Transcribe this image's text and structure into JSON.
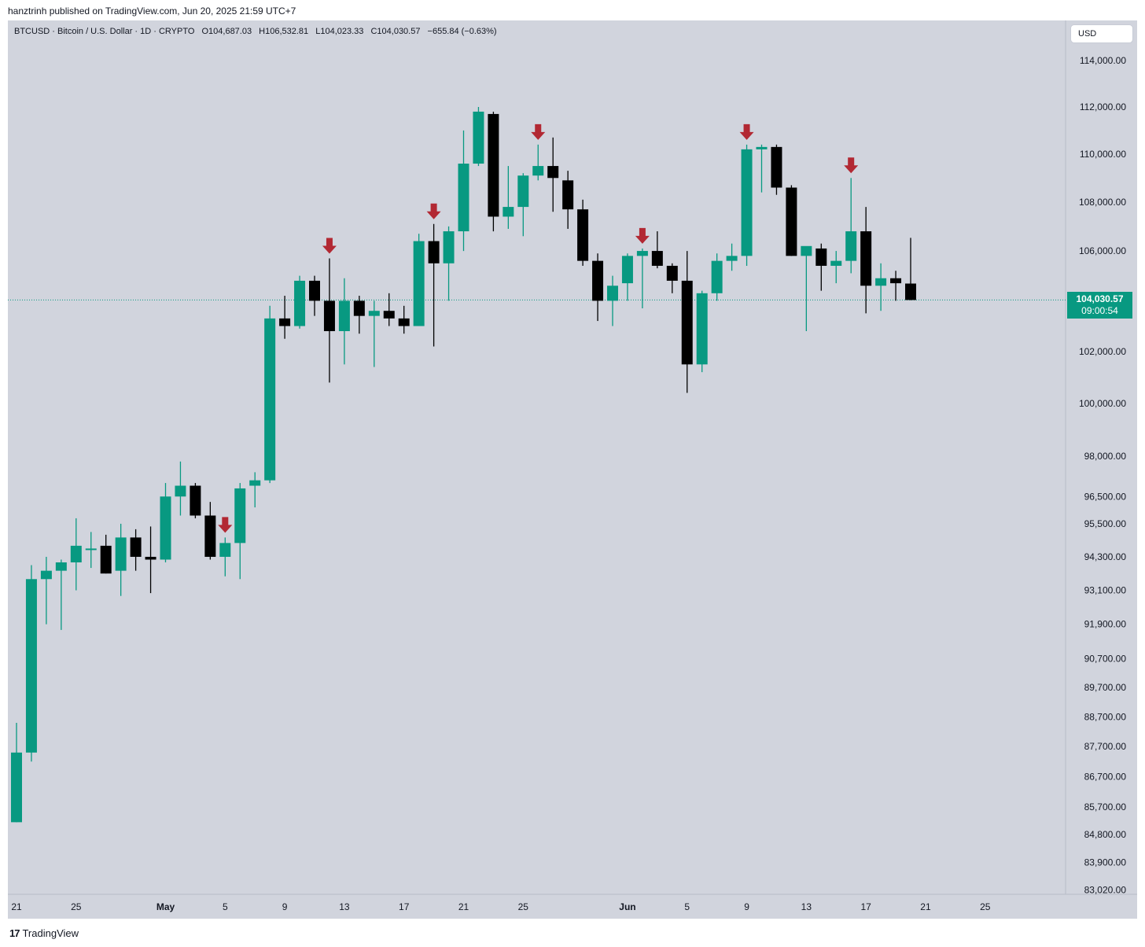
{
  "header": {
    "published": "hanztrinh published on TradingView.com, Jun 20, 2025 21:59 UTC+7"
  },
  "legend": {
    "symbol": "BTCUSD · Bitcoin / U.S. Dollar · 1D · CRYPTO",
    "open": "O104,687.03",
    "high": "H106,532.81",
    "low": "L104,023.33",
    "close": "C104,030.57",
    "change": "−655.84 (−0.63%)"
  },
  "currency_button": "USD",
  "last_price": {
    "price": "104,030.57",
    "countdown": "09:00:54"
  },
  "footer": {
    "brand": "TradingView",
    "logo": "17"
  },
  "colors": {
    "up": "#089981",
    "down": "#000000",
    "arrow": "#b22833",
    "background": "#d1d4dd"
  },
  "chart_data": {
    "type": "candlestick",
    "title": "",
    "y_scale": "log",
    "ylim": [
      82800,
      115500
    ],
    "yticks": [
      {
        "value": 114000,
        "label": "114,000.00"
      },
      {
        "value": 112000,
        "label": "112,000.00"
      },
      {
        "value": 110000,
        "label": "110,000.00"
      },
      {
        "value": 108000,
        "label": "108,000.00"
      },
      {
        "value": 106000,
        "label": "106,000.00"
      },
      {
        "value": 102000,
        "label": "102,000.00"
      },
      {
        "value": 100000,
        "label": "100,000.00"
      },
      {
        "value": 98000,
        "label": "98,000.00"
      },
      {
        "value": 96500,
        "label": "96,500.00"
      },
      {
        "value": 95500,
        "label": "95,500.00"
      },
      {
        "value": 94300,
        "label": "94,300.00"
      },
      {
        "value": 93100,
        "label": "93,100.00"
      },
      {
        "value": 91900,
        "label": "91,900.00"
      },
      {
        "value": 90700,
        "label": "90,700.00"
      },
      {
        "value": 89700,
        "label": "89,700.00"
      },
      {
        "value": 88700,
        "label": "88,700.00"
      },
      {
        "value": 87700,
        "label": "87,700.00"
      },
      {
        "value": 86700,
        "label": "86,700.00"
      },
      {
        "value": 85700,
        "label": "85,700.00"
      },
      {
        "value": 84800,
        "label": "84,800.00"
      },
      {
        "value": 83900,
        "label": "83,900.00"
      },
      {
        "value": 83020,
        "label": "83,020.00"
      }
    ],
    "xticks": [
      {
        "date": "2025-04-21",
        "label": "21",
        "bold": false
      },
      {
        "date": "2025-04-25",
        "label": "25",
        "bold": false
      },
      {
        "date": "2025-05-01",
        "label": "May",
        "bold": true
      },
      {
        "date": "2025-05-05",
        "label": "5",
        "bold": false
      },
      {
        "date": "2025-05-09",
        "label": "9",
        "bold": false
      },
      {
        "date": "2025-05-13",
        "label": "13",
        "bold": false
      },
      {
        "date": "2025-05-17",
        "label": "17",
        "bold": false
      },
      {
        "date": "2025-05-21",
        "label": "21",
        "bold": false
      },
      {
        "date": "2025-05-25",
        "label": "25",
        "bold": false
      },
      {
        "date": "2025-06-01",
        "label": "Jun",
        "bold": true
      },
      {
        "date": "2025-06-05",
        "label": "5",
        "bold": false
      },
      {
        "date": "2025-06-09",
        "label": "9",
        "bold": false
      },
      {
        "date": "2025-06-13",
        "label": "13",
        "bold": false
      },
      {
        "date": "2025-06-17",
        "label": "17",
        "bold": false
      },
      {
        "date": "2025-06-21",
        "label": "21",
        "bold": false
      },
      {
        "date": "2025-06-25",
        "label": "25",
        "bold": false
      }
    ],
    "last_price": 104030.57,
    "candles": [
      {
        "date": "2025-04-21",
        "o": 85200,
        "h": 88500,
        "l": 85200,
        "c": 87500
      },
      {
        "date": "2025-04-22",
        "o": 87500,
        "h": 94000,
        "l": 87200,
        "c": 93500
      },
      {
        "date": "2025-04-23",
        "o": 93500,
        "h": 94300,
        "l": 91900,
        "c": 93800
      },
      {
        "date": "2025-04-24",
        "o": 93800,
        "h": 94200,
        "l": 91700,
        "c": 94100
      },
      {
        "date": "2025-04-25",
        "o": 94100,
        "h": 95700,
        "l": 93100,
        "c": 94700
      },
      {
        "date": "2025-04-26",
        "o": 94600,
        "h": 95200,
        "l": 93900,
        "c": 94600
      },
      {
        "date": "2025-04-27",
        "o": 94700,
        "h": 95100,
        "l": 93700,
        "c": 93700
      },
      {
        "date": "2025-04-28",
        "o": 93800,
        "h": 95500,
        "l": 92900,
        "c": 95000
      },
      {
        "date": "2025-04-29",
        "o": 95000,
        "h": 95300,
        "l": 93800,
        "c": 94300
      },
      {
        "date": "2025-04-30",
        "o": 94300,
        "h": 95400,
        "l": 93000,
        "c": 94200
      },
      {
        "date": "2025-05-01",
        "o": 94200,
        "h": 97000,
        "l": 94100,
        "c": 96500
      },
      {
        "date": "2025-05-02",
        "o": 96500,
        "h": 97800,
        "l": 95800,
        "c": 96900
      },
      {
        "date": "2025-05-03",
        "o": 96900,
        "h": 97000,
        "l": 95700,
        "c": 95800
      },
      {
        "date": "2025-05-04",
        "o": 95800,
        "h": 96300,
        "l": 94200,
        "c": 94300
      },
      {
        "date": "2025-05-05",
        "o": 94300,
        "h": 95000,
        "l": 93600,
        "c": 94800
      },
      {
        "date": "2025-05-06",
        "o": 94800,
        "h": 97000,
        "l": 93500,
        "c": 96800
      },
      {
        "date": "2025-05-07",
        "o": 96900,
        "h": 97400,
        "l": 96100,
        "c": 97100
      },
      {
        "date": "2025-05-08",
        "o": 97100,
        "h": 103800,
        "l": 97000,
        "c": 103300
      },
      {
        "date": "2025-05-09",
        "o": 103300,
        "h": 104200,
        "l": 102500,
        "c": 103000
      },
      {
        "date": "2025-05-10",
        "o": 103000,
        "h": 105000,
        "l": 102900,
        "c": 104800
      },
      {
        "date": "2025-05-11",
        "o": 104800,
        "h": 105000,
        "l": 103400,
        "c": 104000
      },
      {
        "date": "2025-05-12",
        "o": 104000,
        "h": 105700,
        "l": 100800,
        "c": 102800
      },
      {
        "date": "2025-05-13",
        "o": 102800,
        "h": 104900,
        "l": 101500,
        "c": 104000
      },
      {
        "date": "2025-05-14",
        "o": 104000,
        "h": 104200,
        "l": 102700,
        "c": 103400
      },
      {
        "date": "2025-05-15",
        "o": 103400,
        "h": 104000,
        "l": 101400,
        "c": 103600
      },
      {
        "date": "2025-05-16",
        "o": 103600,
        "h": 104300,
        "l": 103000,
        "c": 103300
      },
      {
        "date": "2025-05-17",
        "o": 103300,
        "h": 103800,
        "l": 102700,
        "c": 103000
      },
      {
        "date": "2025-05-18",
        "o": 103000,
        "h": 106700,
        "l": 103000,
        "c": 106400
      },
      {
        "date": "2025-05-19",
        "o": 106400,
        "h": 107100,
        "l": 102200,
        "c": 105500
      },
      {
        "date": "2025-05-20",
        "o": 105500,
        "h": 107000,
        "l": 104000,
        "c": 106800
      },
      {
        "date": "2025-05-21",
        "o": 106800,
        "h": 111000,
        "l": 106000,
        "c": 109600
      },
      {
        "date": "2025-05-22",
        "o": 109600,
        "h": 112000,
        "l": 109500,
        "c": 111800
      },
      {
        "date": "2025-05-23",
        "o": 111700,
        "h": 111800,
        "l": 106800,
        "c": 107400
      },
      {
        "date": "2025-05-24",
        "o": 107400,
        "h": 109500,
        "l": 106900,
        "c": 107800
      },
      {
        "date": "2025-05-25",
        "o": 107800,
        "h": 109200,
        "l": 106600,
        "c": 109100
      },
      {
        "date": "2025-05-26",
        "o": 109100,
        "h": 110400,
        "l": 108900,
        "c": 109500
      },
      {
        "date": "2025-05-27",
        "o": 109500,
        "h": 110700,
        "l": 107600,
        "c": 109000
      },
      {
        "date": "2025-05-28",
        "o": 108900,
        "h": 109300,
        "l": 106900,
        "c": 107700
      },
      {
        "date": "2025-05-29",
        "o": 107700,
        "h": 108100,
        "l": 105400,
        "c": 105600
      },
      {
        "date": "2025-05-30",
        "o": 105600,
        "h": 105900,
        "l": 103200,
        "c": 104000
      },
      {
        "date": "2025-05-31",
        "o": 104000,
        "h": 105000,
        "l": 103000,
        "c": 104600
      },
      {
        "date": "2025-06-01",
        "o": 104700,
        "h": 105900,
        "l": 104000,
        "c": 105800
      },
      {
        "date": "2025-06-02",
        "o": 105800,
        "h": 106100,
        "l": 103700,
        "c": 106000
      },
      {
        "date": "2025-06-03",
        "o": 106000,
        "h": 106800,
        "l": 105300,
        "c": 105400
      },
      {
        "date": "2025-06-04",
        "o": 105400,
        "h": 105500,
        "l": 104300,
        "c": 104800
      },
      {
        "date": "2025-06-05",
        "o": 104800,
        "h": 106000,
        "l": 100400,
        "c": 101500
      },
      {
        "date": "2025-06-06",
        "o": 101500,
        "h": 104400,
        "l": 101200,
        "c": 104300
      },
      {
        "date": "2025-06-07",
        "o": 104300,
        "h": 105900,
        "l": 104000,
        "c": 105600
      },
      {
        "date": "2025-06-08",
        "o": 105600,
        "h": 106300,
        "l": 105200,
        "c": 105800
      },
      {
        "date": "2025-06-09",
        "o": 105800,
        "h": 110400,
        "l": 105400,
        "c": 110200
      },
      {
        "date": "2025-06-10",
        "o": 110200,
        "h": 110400,
        "l": 108400,
        "c": 110300
      },
      {
        "date": "2025-06-11",
        "o": 110300,
        "h": 110400,
        "l": 108300,
        "c": 108600
      },
      {
        "date": "2025-06-12",
        "o": 108600,
        "h": 108700,
        "l": 105800,
        "c": 105800
      },
      {
        "date": "2025-06-13",
        "o": 105800,
        "h": 106100,
        "l": 102800,
        "c": 106200
      },
      {
        "date": "2025-06-14",
        "o": 106100,
        "h": 106300,
        "l": 104400,
        "c": 105400
      },
      {
        "date": "2025-06-15",
        "o": 105400,
        "h": 106000,
        "l": 104700,
        "c": 105600
      },
      {
        "date": "2025-06-16",
        "o": 105600,
        "h": 109000,
        "l": 105100,
        "c": 106800
      },
      {
        "date": "2025-06-17",
        "o": 106800,
        "h": 107800,
        "l": 103500,
        "c": 104600
      },
      {
        "date": "2025-06-18",
        "o": 104600,
        "h": 105500,
        "l": 103600,
        "c": 104900
      },
      {
        "date": "2025-06-19",
        "o": 104900,
        "h": 105200,
        "l": 104000,
        "c": 104700
      },
      {
        "date": "2025-06-20",
        "o": 104687.03,
        "h": 106532.81,
        "l": 104023.33,
        "c": 104030.57
      }
    ],
    "annotations": [
      {
        "type": "down-arrow",
        "date": "2025-05-05"
      },
      {
        "type": "down-arrow",
        "date": "2025-05-12"
      },
      {
        "type": "down-arrow",
        "date": "2025-05-19"
      },
      {
        "type": "down-arrow",
        "date": "2025-05-26"
      },
      {
        "type": "down-arrow",
        "date": "2025-06-02"
      },
      {
        "type": "down-arrow",
        "date": "2025-06-09"
      },
      {
        "type": "down-arrow",
        "date": "2025-06-16"
      }
    ]
  }
}
